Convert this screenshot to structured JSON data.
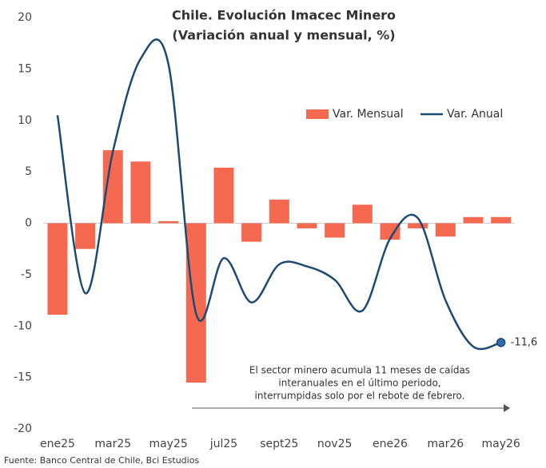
{
  "chart_data": {
    "type": "bar",
    "title": "Chile. Evolución Imacec Minero",
    "subtitle": "(Variación anual y mensual, %)",
    "categories": [
      "ene25",
      null,
      "mar25",
      null,
      "may25",
      null,
      "jul25",
      null,
      "sept25",
      null,
      "nov25",
      null,
      "ene26",
      null,
      "mar26",
      null,
      "may26"
    ],
    "series": [
      {
        "name": "Var. Mensual",
        "type": "bar",
        "color": "#f4694f",
        "values": [
          -8.9,
          -2.5,
          7.1,
          6.0,
          0.2,
          -15.5,
          5.4,
          -1.8,
          2.3,
          -0.5,
          -1.4,
          1.8,
          -1.6,
          -0.5,
          -1.3,
          0.6,
          0.6
        ]
      },
      {
        "name": "Var. Anual",
        "type": "line",
        "color": "#1d4a72",
        "values": [
          10.5,
          -6.8,
          7.0,
          16.0,
          15.5,
          -8.8,
          -3.4,
          -7.7,
          -4.0,
          -4.2,
          -5.5,
          -8.5,
          -1.5,
          0.5,
          -7.5,
          -12.0,
          -11.6
        ],
        "value_labels": [
          null,
          null,
          null,
          null,
          null,
          null,
          null,
          null,
          null,
          null,
          null,
          null,
          null,
          null,
          null,
          null,
          "-11,6"
        ]
      }
    ],
    "ylim": [
      -20,
      20
    ],
    "yticks": [
      20,
      15,
      10,
      5,
      0,
      -5,
      -10,
      -15,
      -20
    ],
    "legend": "top-right",
    "annotation": [
      "El sector minero acumula 11 meses de caídas",
      "interanuales en el último periodo,",
      "interrumpidas solo por el rebote de febrero."
    ],
    "source": "Fuente: Banco Central de Chile, Bci Estudios"
  }
}
